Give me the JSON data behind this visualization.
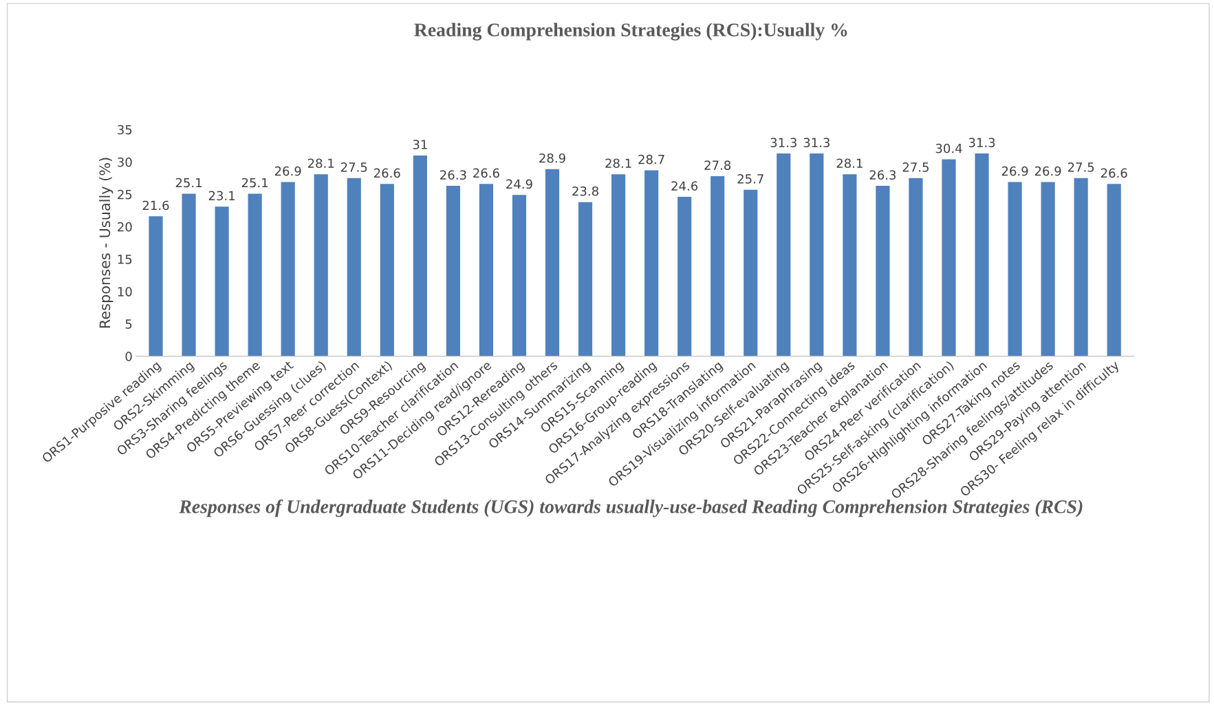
{
  "chart_data": {
    "type": "bar",
    "title": "Reading Comprehension Strategies (RCS):Usually %",
    "xlabel": "Responses of Undergraduate Students (UGS) towards usually-use-based Reading Comprehension Strategies (RCS)",
    "ylabel": "Responses - Usually (%)",
    "categories": [
      "ORS1-Purposive reading",
      "ORS2-Skimming",
      "ORS3-Sharing feelings",
      "ORS4-Predicting theme",
      "ORS5-Previewing text",
      "ORS6-Guessing (clues)",
      "ORS7-Peer correction",
      "ORS8-Guess(Context)",
      "ORS9-Resourcing",
      "ORS10-Teacher clarification",
      "ORS11-Deciding read/ignore",
      "ORS12-Rereading",
      "ORS13-Consulting others",
      "ORS14-Summarizing",
      "ORS15-Scanning",
      "ORS16-Group-reading",
      "ORS17-Analyzing expressions",
      "ORS18-Translating",
      "ORS19-Visualizing information",
      "ORS20-Self-evaluating",
      "ORS21-Paraphrasing",
      "ORS22-Connecting ideas",
      "ORS23-Teacher explanation",
      "ORS24-Peer verification",
      "ORS25-Self-asking (clarification)",
      "ORS26-Highlighting information",
      "ORS27-Taking notes",
      "ORS28-Sharing feelings/attitudes",
      "ORS29-Paying attention",
      "ORS30- Feeling relax in difficulty"
    ],
    "values": [
      21.6,
      25.1,
      23.1,
      25.1,
      26.9,
      28.1,
      27.5,
      26.6,
      31,
      26.3,
      26.6,
      24.9,
      28.9,
      23.8,
      28.1,
      28.7,
      24.6,
      27.8,
      25.7,
      31.3,
      31.3,
      28.1,
      26.3,
      27.5,
      30.4,
      31.3,
      26.9,
      26.9,
      27.5,
      26.6
    ],
    "color": "#4f81bd",
    "ylim": [
      0,
      35
    ],
    "yticks": [
      0,
      5,
      10,
      15,
      20,
      25,
      30,
      35
    ],
    "data_labels": true,
    "grid": false,
    "legend": false
  }
}
